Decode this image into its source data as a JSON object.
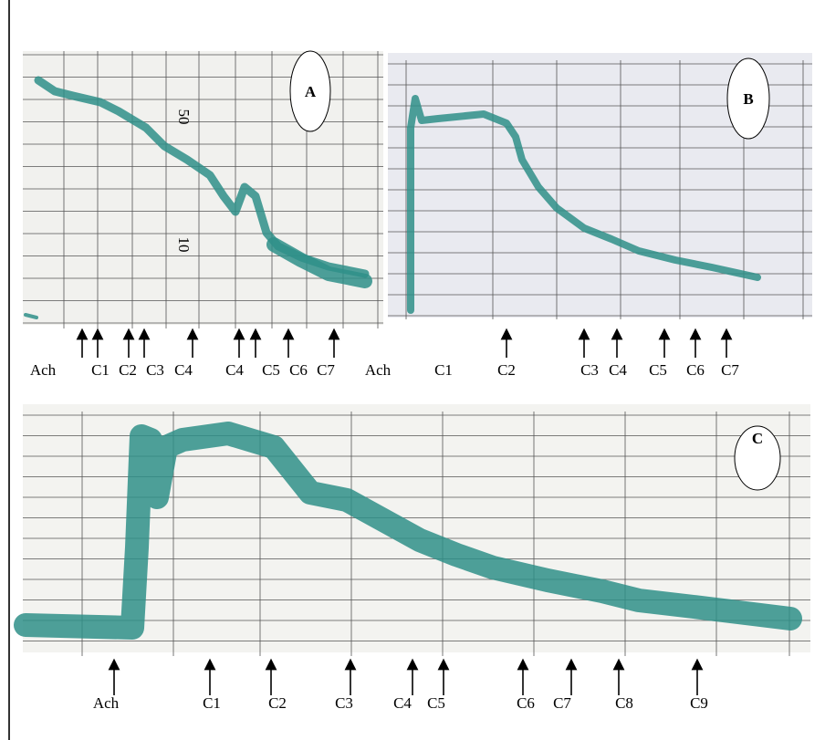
{
  "panels": [
    {
      "label": "A",
      "axis_marks": [
        "50",
        "10"
      ],
      "events": [
        "Ach",
        "C1",
        "C2",
        "C3",
        "C4",
        "C4",
        "C5",
        "C6",
        "C7"
      ]
    },
    {
      "label": "B",
      "events": [
        "Ach",
        "C1",
        "C2",
        "C3",
        "C4",
        "C5",
        "C6",
        "C7"
      ]
    },
    {
      "label": "C",
      "events": [
        "Ach",
        "C1",
        "C2",
        "C3",
        "C4",
        "C5",
        "C6",
        "C7",
        "C8",
        "C9"
      ]
    }
  ]
}
